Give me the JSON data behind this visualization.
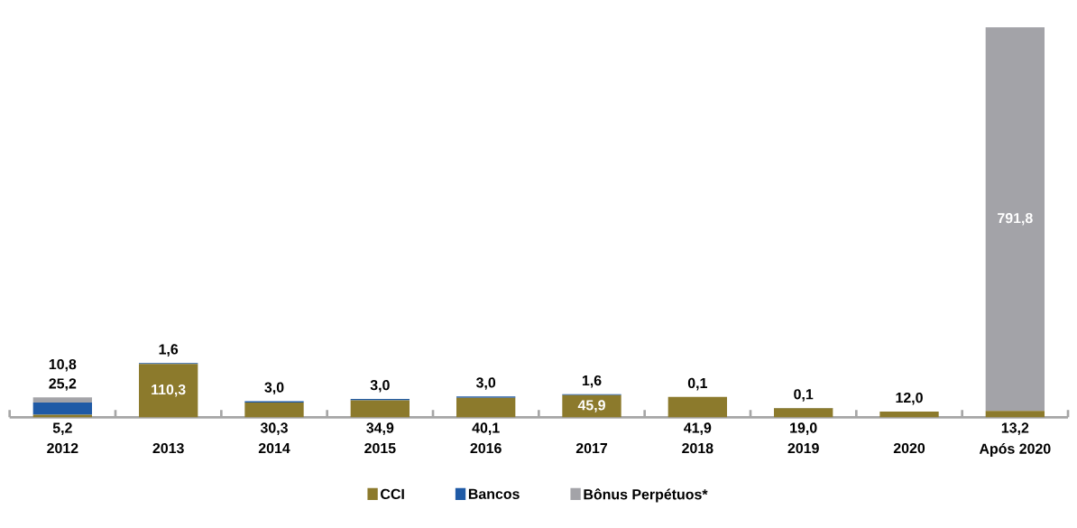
{
  "chart_data": {
    "type": "bar",
    "stacked": true,
    "legend": "bottom",
    "categories": [
      "2012",
      "2013",
      "2014",
      "2015",
      "2016",
      "2017",
      "2018",
      "2019",
      "2020",
      "Após 2020"
    ],
    "series": [
      {
        "name": "CCI",
        "color": "#8c7a2c",
        "values": [
          5.2,
          110.3,
          30.3,
          34.9,
          40.1,
          45.9,
          41.9,
          19.0,
          12.0,
          13.2
        ],
        "value_labels": [
          "5,2",
          "110,3",
          "30,3",
          "34,9",
          "40,1",
          "45,9",
          "41,9",
          "19,0",
          "12,0",
          "13,2"
        ]
      },
      {
        "name": "Bancos",
        "color": "#1f5aa6",
        "values": [
          25.2,
          1.6,
          3.0,
          3.0,
          3.0,
          1.6,
          0.1,
          0.1,
          null,
          null
        ],
        "value_labels": [
          "25,2",
          "1,6",
          "3,0",
          "3,0",
          "3,0",
          "1,6",
          "0,1",
          "0,1",
          null,
          null
        ]
      },
      {
        "name": "Bônus Perpétuos*",
        "color": "#a3a3a8",
        "values": [
          10.8,
          null,
          null,
          null,
          null,
          null,
          null,
          null,
          null,
          791.8
        ],
        "value_labels": [
          "10,8",
          null,
          null,
          null,
          null,
          null,
          null,
          null,
          null,
          "791,8"
        ]
      }
    ]
  }
}
